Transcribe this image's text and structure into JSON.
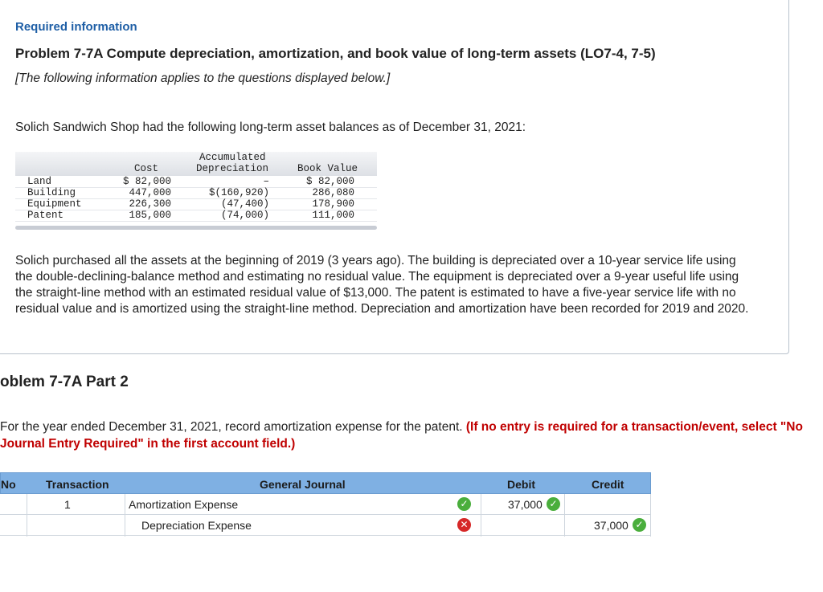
{
  "header": {
    "required_info": "Required information",
    "problem_title": "Problem 7-7A Compute depreciation, amortization, and book value of long-term assets (LO7-4, 7-5)",
    "subtitle": "[The following information applies to the questions displayed below.]"
  },
  "intro": "Solich Sandwich Shop had the following long-term asset balances as of December 31, 2021:",
  "asset_table": {
    "headers": {
      "cost": "Cost",
      "accumulated_1": "Accumulated",
      "accumulated_2": "Depreciation",
      "book_value": "Book Value"
    },
    "rows": [
      {
        "name": "Land",
        "cost": "$ 82,000",
        "accumulated": "–",
        "book": "$ 82,000"
      },
      {
        "name": "Building",
        "cost": "447,000",
        "accumulated": "$(160,920)",
        "book": "286,080"
      },
      {
        "name": "Equipment",
        "cost": "226,300",
        "accumulated": "(47,400)",
        "book": "178,900"
      },
      {
        "name": "Patent",
        "cost": "185,000",
        "accumulated": "(74,000)",
        "book": "111,000"
      }
    ]
  },
  "description": "Solich purchased all the assets at the beginning of 2019 (3 years ago). The building is depreciated over a 10-year service life using the double-declining-balance method and estimating no residual value. The equipment is depreciated over a 9-year useful life using the straight-line method with an estimated residual value of $13,000. The patent is estimated to have a five-year service life with no residual value and is amortized using the straight-line method. Depreciation and amortization have been recorded for 2019 and 2020.",
  "part_title": "oblem 7-7A Part 2",
  "instructions": {
    "text": "For the year ended December 31, 2021, record amortization expense for the patent.",
    "red": "(If no entry is required for a transaction/event, select \"No Journal Entry Required\" in the first account field.)"
  },
  "journal": {
    "headers": {
      "no": "No",
      "transaction": "Transaction",
      "general_journal": "General Journal",
      "debit": "Debit",
      "credit": "Credit"
    },
    "rows": [
      {
        "transaction": "1",
        "account": "Amortization Expense",
        "debit": "37,000",
        "credit": ""
      },
      {
        "transaction": "",
        "account": "Depreciation Expense",
        "debit": "",
        "credit": "37,000"
      }
    ]
  },
  "colors": {
    "accent": "#1f5fa6",
    "table_header": "#7fb0e3",
    "correct": "#4aae3c",
    "incorrect": "#d62828",
    "warning_text": "#c00000"
  },
  "icons": {
    "correct": "check-circle-icon",
    "incorrect": "x-circle-icon"
  }
}
